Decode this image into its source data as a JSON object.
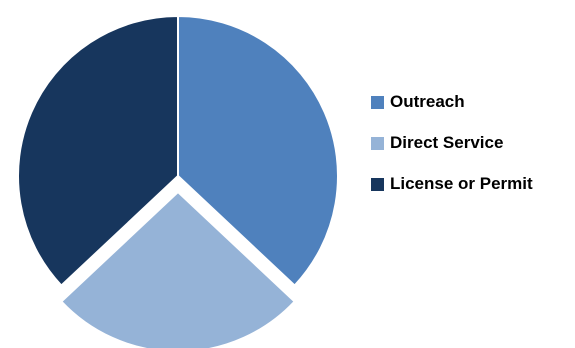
{
  "chart_data": {
    "type": "pie",
    "title": "",
    "slices": [
      {
        "label": "Outreach",
        "value": 37,
        "color": "#4f81bd"
      },
      {
        "label": "Direct Service",
        "value": 26,
        "color": "#95b3d7"
      },
      {
        "label": "License or Permit",
        "value": 37,
        "color": "#17365d"
      }
    ],
    "exploded": "Direct Service",
    "legend_position": "right"
  }
}
